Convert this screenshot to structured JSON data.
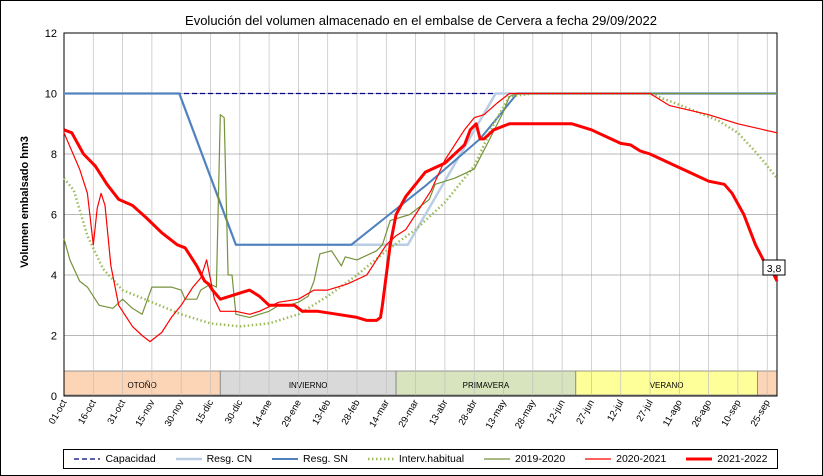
{
  "chart_data": {
    "type": "line",
    "title": "Evolución del volumen almacenado en el embalse de Cervera a fecha 29/09/2022",
    "ylabel": "Volumen embalsado hm3",
    "xlabel": "",
    "ylim": [
      0,
      12
    ],
    "yticks": [
      "0",
      "2",
      "4",
      "6",
      "8",
      "10",
      "12"
    ],
    "x_labels": [
      "01-oct",
      "16-oct",
      "31-oct",
      "15-nov",
      "30-nov",
      "15-dic",
      "30-dic",
      "14-ene",
      "29-ene",
      "13-feb",
      "28-feb",
      "14-mar",
      "29-mar",
      "13-abr",
      "28-abr",
      "13-may",
      "28-may",
      "12-jun",
      "27-jun",
      "12-jul",
      "27-jul",
      "11-ago",
      "26-ago",
      "10-sep",
      "25-sep"
    ],
    "x_span_days": 365,
    "grid": true,
    "legend_position": "bottom",
    "seasons": [
      {
        "label": "OTOÑO",
        "from": 0,
        "to": 80,
        "color": "#fbd5b5"
      },
      {
        "label": "INVIERNO",
        "from": 80,
        "to": 170,
        "color": "#d9d9d9"
      },
      {
        "label": "PRIMAVERA",
        "from": 170,
        "to": 262,
        "color": "#d7e4bd"
      },
      {
        "label": "VERANO",
        "from": 262,
        "to": 355,
        "color": "#ffff99"
      },
      {
        "label": "",
        "from": 355,
        "to": 365,
        "color": "#fbd5b5"
      }
    ],
    "end_label": "3,8",
    "series": [
      {
        "name": "Capacidad",
        "color": "#000080",
        "style": "dashed",
        "width": 1.3,
        "points": [
          [
            0,
            10
          ],
          [
            365,
            10
          ]
        ]
      },
      {
        "name": "Resg. CN",
        "color": "#b9cde5",
        "style": "solid",
        "width": 2.5,
        "points": [
          [
            0,
            10
          ],
          [
            59,
            10
          ],
          [
            88,
            5
          ],
          [
            176,
            5
          ],
          [
            221,
            10
          ],
          [
            365,
            10
          ]
        ]
      },
      {
        "name": "Resg. SN",
        "color": "#4f81bd",
        "style": "solid",
        "width": 2,
        "points": [
          [
            0,
            10
          ],
          [
            59,
            10
          ],
          [
            88,
            5
          ],
          [
            147,
            5
          ],
          [
            186,
            7
          ],
          [
            213,
            8.5
          ],
          [
            232,
            10
          ],
          [
            365,
            10
          ]
        ]
      },
      {
        "name": "Interv.habitual",
        "color": "#9bbb59",
        "style": "dotted",
        "width": 2.5,
        "points": [
          [
            0,
            7.2
          ],
          [
            5,
            6.8
          ],
          [
            12,
            5.3
          ],
          [
            20,
            4.2
          ],
          [
            30,
            3.5
          ],
          [
            45,
            3.1
          ],
          [
            60,
            2.7
          ],
          [
            75,
            2.4
          ],
          [
            90,
            2.3
          ],
          [
            105,
            2.4
          ],
          [
            120,
            2.7
          ],
          [
            135,
            3.3
          ],
          [
            150,
            4.0
          ],
          [
            165,
            4.8
          ],
          [
            180,
            5.5
          ],
          [
            195,
            6.4
          ],
          [
            210,
            7.6
          ],
          [
            220,
            9.0
          ],
          [
            228,
            9.9
          ],
          [
            240,
            10.0
          ],
          [
            300,
            10.0
          ],
          [
            320,
            9.5
          ],
          [
            335,
            9.1
          ],
          [
            345,
            8.7
          ],
          [
            355,
            8.0
          ],
          [
            365,
            7.2
          ]
        ]
      },
      {
        "name": "2019-2020",
        "color": "#76923c",
        "style": "solid",
        "width": 1.2,
        "points": [
          [
            0,
            5.2
          ],
          [
            3,
            4.5
          ],
          [
            8,
            3.8
          ],
          [
            12,
            3.6
          ],
          [
            18,
            3.0
          ],
          [
            25,
            2.9
          ],
          [
            30,
            3.2
          ],
          [
            35,
            2.9
          ],
          [
            40,
            2.7
          ],
          [
            45,
            3.6
          ],
          [
            55,
            3.6
          ],
          [
            60,
            3.5
          ],
          [
            62,
            3.2
          ],
          [
            68,
            3.2
          ],
          [
            70,
            3.5
          ],
          [
            75,
            3.7
          ],
          [
            78,
            3.6
          ],
          [
            80,
            9.3
          ],
          [
            82,
            9.2
          ],
          [
            84,
            4.0
          ],
          [
            86,
            4.0
          ],
          [
            88,
            2.7
          ],
          [
            95,
            2.6
          ],
          [
            100,
            2.7
          ],
          [
            105,
            2.8
          ],
          [
            110,
            3.0
          ],
          [
            115,
            3.0
          ],
          [
            120,
            3.1
          ],
          [
            125,
            3.3
          ],
          [
            128,
            3.8
          ],
          [
            131,
            4.7
          ],
          [
            137,
            4.8
          ],
          [
            142,
            4.3
          ],
          [
            144,
            4.6
          ],
          [
            150,
            4.5
          ],
          [
            160,
            4.8
          ],
          [
            163,
            5.0
          ],
          [
            167,
            5.8
          ],
          [
            177,
            6.0
          ],
          [
            187,
            6.5
          ],
          [
            190,
            7.0
          ],
          [
            200,
            7.2
          ],
          [
            210,
            7.5
          ],
          [
            218,
            8.5
          ],
          [
            225,
            9.4
          ],
          [
            228,
            9.9
          ],
          [
            232,
            10.0
          ],
          [
            365,
            10.0
          ]
        ]
      },
      {
        "name": "2020-2021",
        "color": "#ff0000",
        "style": "solid",
        "width": 1.2,
        "points": [
          [
            0,
            8.7
          ],
          [
            8,
            7.5
          ],
          [
            12,
            6.7
          ],
          [
            15,
            5.0
          ],
          [
            17,
            6.2
          ],
          [
            19,
            6.7
          ],
          [
            21,
            6.3
          ],
          [
            24,
            4.3
          ],
          [
            28,
            3.0
          ],
          [
            35,
            2.3
          ],
          [
            40,
            2.0
          ],
          [
            44,
            1.8
          ],
          [
            50,
            2.1
          ],
          [
            55,
            2.6
          ],
          [
            60,
            3.0
          ],
          [
            66,
            3.6
          ],
          [
            70,
            3.9
          ],
          [
            73,
            4.5
          ],
          [
            77,
            3.2
          ],
          [
            80,
            2.8
          ],
          [
            88,
            2.8
          ],
          [
            95,
            2.7
          ],
          [
            100,
            2.8
          ],
          [
            110,
            3.1
          ],
          [
            120,
            3.2
          ],
          [
            128,
            3.5
          ],
          [
            135,
            3.5
          ],
          [
            145,
            3.7
          ],
          [
            155,
            4.0
          ],
          [
            160,
            4.5
          ],
          [
            165,
            5.0
          ],
          [
            170,
            5.3
          ],
          [
            175,
            5.5
          ],
          [
            180,
            6.0
          ],
          [
            188,
            6.8
          ],
          [
            195,
            7.8
          ],
          [
            205,
            8.8
          ],
          [
            210,
            9.2
          ],
          [
            215,
            9.3
          ],
          [
            222,
            9.7
          ],
          [
            228,
            10.0
          ],
          [
            300,
            10.0
          ],
          [
            310,
            9.6
          ],
          [
            330,
            9.3
          ],
          [
            345,
            9.0
          ],
          [
            355,
            8.85
          ],
          [
            365,
            8.7
          ]
        ]
      },
      {
        "name": "2021-2022",
        "color": "#ff0000",
        "style": "solid",
        "width": 3,
        "points": [
          [
            0,
            8.8
          ],
          [
            4,
            8.7
          ],
          [
            10,
            8.0
          ],
          [
            16,
            7.6
          ],
          [
            22,
            7.0
          ],
          [
            28,
            6.5
          ],
          [
            35,
            6.3
          ],
          [
            42,
            5.9
          ],
          [
            50,
            5.4
          ],
          [
            58,
            5.0
          ],
          [
            62,
            4.9
          ],
          [
            68,
            4.3
          ],
          [
            72,
            3.8
          ],
          [
            74,
            3.7
          ],
          [
            76,
            3.5
          ],
          [
            80,
            3.2
          ],
          [
            85,
            3.3
          ],
          [
            90,
            3.4
          ],
          [
            95,
            3.5
          ],
          [
            100,
            3.3
          ],
          [
            105,
            3.0
          ],
          [
            110,
            3.0
          ],
          [
            118,
            3.0
          ],
          [
            122,
            2.8
          ],
          [
            130,
            2.8
          ],
          [
            140,
            2.7
          ],
          [
            150,
            2.6
          ],
          [
            155,
            2.5
          ],
          [
            160,
            2.5
          ],
          [
            162,
            2.6
          ],
          [
            163,
            3.0
          ],
          [
            165,
            4.0
          ],
          [
            167,
            5.0
          ],
          [
            170,
            6.0
          ],
          [
            175,
            6.6
          ],
          [
            180,
            7.0
          ],
          [
            185,
            7.4
          ],
          [
            195,
            7.7
          ],
          [
            200,
            8.0
          ],
          [
            205,
            8.3
          ],
          [
            208,
            8.8
          ],
          [
            211,
            9.0
          ],
          [
            213,
            8.5
          ],
          [
            215,
            8.5
          ],
          [
            220,
            8.8
          ],
          [
            228,
            9.0
          ],
          [
            245,
            9.0
          ],
          [
            255,
            9.0
          ],
          [
            260,
            9.0
          ],
          [
            265,
            8.9
          ],
          [
            270,
            8.8
          ],
          [
            280,
            8.5
          ],
          [
            285,
            8.35
          ],
          [
            290,
            8.3
          ],
          [
            295,
            8.1
          ],
          [
            300,
            8.0
          ],
          [
            310,
            7.7
          ],
          [
            320,
            7.4
          ],
          [
            330,
            7.1
          ],
          [
            338,
            7.0
          ],
          [
            342,
            6.7
          ],
          [
            348,
            6.0
          ],
          [
            354,
            5.0
          ],
          [
            358,
            4.5
          ],
          [
            362,
            4.2
          ],
          [
            365,
            3.8
          ]
        ]
      }
    ]
  }
}
